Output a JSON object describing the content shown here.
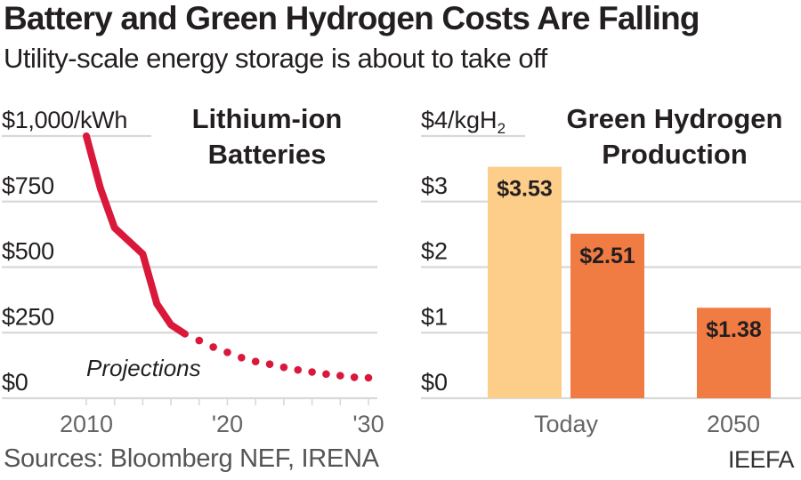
{
  "header": {
    "title": "Battery and Green Hydrogen Costs Are Falling",
    "subtitle": "Utility-scale energy storage is about to take off"
  },
  "footer": {
    "sources": "Sources: Bloomberg NEF, IRENA",
    "brand": "IEEFA"
  },
  "colors": {
    "line": "#D9183B",
    "bar_today_low": "#FDCD8A",
    "bar_orange": "#F07B43",
    "grid": "#d8d8d8",
    "axis_text": "#231f20",
    "xtick_text": "#666666"
  },
  "chart_data": [
    {
      "type": "line",
      "title": "Lithium-ion Batteries",
      "title_lines": [
        "Lithium-ion",
        "Batteries"
      ],
      "ylabel": "$/kWh",
      "ylim": [
        0,
        1000
      ],
      "yticks": [
        0,
        250,
        500,
        750,
        1000
      ],
      "ytick_labels": [
        "$0",
        "$250",
        "$500",
        "$750",
        "$1,000/kWh"
      ],
      "xlim": [
        2010,
        2030
      ],
      "xticks": [
        2010,
        2012,
        2014,
        2016,
        2018,
        2020,
        2022,
        2024,
        2026,
        2028,
        2030
      ],
      "xtick_labels": [
        {
          "x": 2010,
          "label": "2010"
        },
        {
          "x": 2020,
          "label": "'20"
        },
        {
          "x": 2030,
          "label": "'30"
        }
      ],
      "grid": true,
      "annotation": "Projections",
      "series": [
        {
          "name": "Historical",
          "style": "solid",
          "x": [
            2010,
            2011,
            2012,
            2013,
            2014,
            2015,
            2016,
            2017
          ],
          "values": [
            1000,
            800,
            650,
            600,
            550,
            360,
            280,
            245
          ]
        },
        {
          "name": "Projections",
          "style": "dotted",
          "x": [
            2017,
            2018,
            2019,
            2020,
            2021,
            2022,
            2023,
            2024,
            2025,
            2026,
            2027,
            2028,
            2029,
            2030
          ],
          "values": [
            245,
            220,
            195,
            175,
            155,
            140,
            130,
            118,
            108,
            100,
            92,
            86,
            80,
            78
          ]
        }
      ]
    },
    {
      "type": "bar",
      "title": "Green Hydrogen Production",
      "title_lines": [
        "Green Hydrogen",
        "Production"
      ],
      "ylabel": "$/kgH2",
      "ylim": [
        0,
        4
      ],
      "yticks": [
        0,
        1,
        2,
        3,
        4
      ],
      "ytick_labels": [
        "$0",
        "$1",
        "$2",
        "$3",
        "$4/kgH"
      ],
      "ytick_top_subscript": "2",
      "categories": [
        "Today",
        "2050"
      ],
      "grid": true,
      "bars": [
        {
          "category": "Today",
          "value": 3.53,
          "label": "$3.53",
          "color_key": "bar_today_low"
        },
        {
          "category": "Today",
          "value": 2.51,
          "label": "$2.51",
          "color_key": "bar_orange"
        },
        {
          "category": "2050",
          "value": 1.38,
          "label": "$1.38",
          "color_key": "bar_orange"
        }
      ]
    }
  ]
}
